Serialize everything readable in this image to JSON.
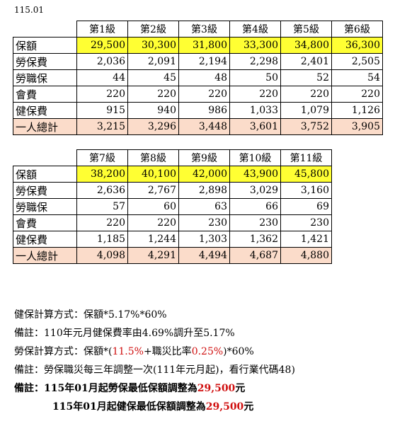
{
  "date": "115.01",
  "table1": {
    "grades": [
      "第1級",
      "第2級",
      "第3級",
      "第4級",
      "第5級",
      "第6級"
    ],
    "rows": [
      {
        "label": "保額",
        "values": [
          "29,500",
          "30,300",
          "31,800",
          "33,300",
          "34,800",
          "36,300"
        ]
      },
      {
        "label": "勞保費",
        "values": [
          "2,036",
          "2,091",
          "2,194",
          "2,298",
          "2,401",
          "2,505"
        ]
      },
      {
        "label": "勞職保",
        "values": [
          "44",
          "45",
          "48",
          "50",
          "52",
          "54"
        ]
      },
      {
        "label": "會費",
        "values": [
          "220",
          "220",
          "220",
          "220",
          "220",
          "220"
        ]
      },
      {
        "label": "健保費",
        "values": [
          "915",
          "940",
          "986",
          "1,033",
          "1,079",
          "1,126"
        ]
      },
      {
        "label": "一人總計",
        "values": [
          "3,215",
          "3,296",
          "3,448",
          "3,601",
          "3,752",
          "3,905"
        ]
      }
    ]
  },
  "table2": {
    "grades": [
      "第7級",
      "第8級",
      "第9級",
      "第10級",
      "第11級"
    ],
    "rows": [
      {
        "label": "保額",
        "values": [
          "38,200",
          "40,100",
          "42,000",
          "43,900",
          "45,800"
        ]
      },
      {
        "label": "勞保費",
        "values": [
          "2,636",
          "2,767",
          "2,898",
          "3,029",
          "3,160"
        ]
      },
      {
        "label": "勞職保",
        "values": [
          "57",
          "60",
          "63",
          "66",
          "69"
        ]
      },
      {
        "label": "會費",
        "values": [
          "220",
          "220",
          "230",
          "230",
          "230"
        ]
      },
      {
        "label": "健保費",
        "values": [
          "1,185",
          "1,244",
          "1,303",
          "1,362",
          "1,421"
        ]
      },
      {
        "label": "一人總計",
        "values": [
          "4,098",
          "4,291",
          "4,494",
          "4,687",
          "4,880"
        ]
      }
    ]
  },
  "notes": {
    "nhi_formula": "健保計算方式：保額*5.17%*60%",
    "remark1": "備註：110年元月健保費率由4.69%調升至5.17%",
    "labor_formula_a": "勞保計算方式：保額*(",
    "labor_rate": "11.5%",
    "labor_formula_b": "+職災比率",
    "injury_rate": "0.25%",
    "labor_formula_c": ")*60%",
    "remark2": "備註：勞保職災每三年調整一次(111年元月起)，看行業代碼48)",
    "remark3_a": "備註：115年01月起勞保最低保額調整為",
    "remark3_amount": "29,500",
    "remark3_b": "元",
    "remark4_a": "115年01月起健保最低保額調整為",
    "remark4_amount": "29,500",
    "remark4_b": "元"
  },
  "colors": {
    "highlight": "#ffff33",
    "total_row": "#fbdcca",
    "red_text": "#d01010"
  }
}
